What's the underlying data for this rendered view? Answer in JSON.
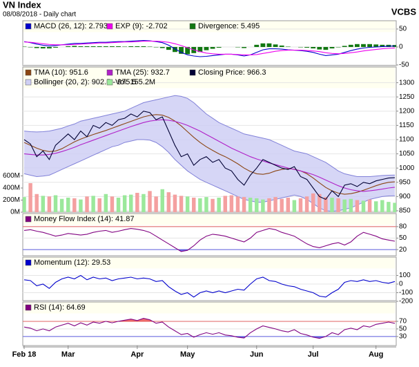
{
  "chart_data": {
    "type": "stock",
    "title": "VN Index",
    "subtitle": "08/08/2018 - Daily chart",
    "source": "VCBS",
    "categories": [
      "Feb 18",
      null,
      null,
      null,
      null,
      null,
      null,
      "Mar",
      null,
      null,
      null,
      null,
      null,
      null,
      null,
      null,
      null,
      null,
      "Apr",
      null,
      null,
      null,
      null,
      null,
      null,
      null,
      "May",
      null,
      null,
      null,
      null,
      null,
      null,
      null,
      null,
      null,
      null,
      "Jun",
      null,
      null,
      null,
      null,
      null,
      null,
      null,
      null,
      "Jul",
      null,
      null,
      null,
      null,
      null,
      null,
      null,
      null,
      null,
      "Aug",
      null,
      null,
      null
    ],
    "panels": [
      {
        "ylim": [
          -52,
          73
        ],
        "yticks": [
          -50,
          0,
          50
        ],
        "grid": true,
        "series": [
          {
            "name": "MACD (26, 12): 2.793",
            "type": "line",
            "color": "#0000cc",
            "values": [
              15,
              12,
              8,
              5,
              3,
              4,
              6,
              8,
              10,
              10,
              11,
              12,
              13,
              13,
              14,
              15,
              15,
              16,
              17,
              18,
              17,
              15,
              12,
              5,
              -5,
              -15,
              -22,
              -25,
              -27,
              -26,
              -24,
              -22,
              -20,
              -20,
              -22,
              -25,
              -22,
              -15,
              -8,
              -5,
              -5,
              -6,
              -8,
              -9,
              -10,
              -12,
              -15,
              -20,
              -24,
              -22,
              -20,
              -15,
              -10,
              -6,
              -3,
              -1,
              0,
              1,
              2,
              2.793
            ]
          },
          {
            "name": "EXP (9): -2.702",
            "type": "line",
            "color": "#ee00ee",
            "values": [
              14,
              13,
              11,
              9,
              7,
              6,
              6,
              6,
              7,
              8,
              9,
              10,
              11,
              11,
              12,
              13,
              14,
              14,
              15,
              16,
              16,
              16,
              15,
              13,
              9,
              4,
              -2,
              -8,
              -13,
              -17,
              -19,
              -20,
              -20,
              -20,
              -21,
              -22,
              -22,
              -21,
              -18,
              -15,
              -12,
              -10,
              -9,
              -9,
              -9,
              -10,
              -11,
              -13,
              -16,
              -18,
              -19,
              -18,
              -16,
              -14,
              -11,
              -9,
              -7,
              -5,
              -4,
              -2.702
            ]
          },
          {
            "name": "Divergence: 5.495",
            "type": "bar",
            "color": "#117711",
            "values": [
              1,
              -1,
              -3,
              -4,
              -4,
              -2,
              0,
              2,
              3,
              2,
              2,
              2,
              2,
              2,
              2,
              2,
              1,
              2,
              2,
              2,
              1,
              -1,
              -3,
              -8,
              -14,
              -19,
              -20,
              -17,
              -14,
              -9,
              -5,
              -2,
              0,
              0,
              -1,
              -3,
              0,
              6,
              10,
              10,
              7,
              4,
              1,
              0,
              -1,
              -2,
              -4,
              -7,
              -8,
              -4,
              -1,
              3,
              6,
              8,
              8,
              8,
              7,
              6,
              6,
              5.495
            ]
          }
        ]
      },
      {
        "ylim": [
          845,
          1355
        ],
        "yticks": [
          850,
          900,
          950,
          1000,
          1050,
          1100,
          1150,
          1200,
          1250,
          1300
        ],
        "grid": true,
        "y2lim": [
          0,
          2400
        ],
        "y2ticks": [
          {
            "value": 0,
            "label": "0M"
          },
          {
            "value": 200,
            "label": "200M"
          },
          {
            "value": 400,
            "label": "400M"
          },
          {
            "value": 600,
            "label": "600M"
          }
        ],
        "series": [
          {
            "name": "TMA (10): 951.6",
            "type": "line",
            "color": "#8b4513",
            "values": [
              1090,
              1080,
              1070,
              1062,
              1058,
              1060,
              1068,
              1080,
              1092,
              1102,
              1110,
              1118,
              1125,
              1132,
              1140,
              1148,
              1156,
              1164,
              1172,
              1180,
              1185,
              1188,
              1186,
              1178,
              1165,
              1148,
              1128,
              1108,
              1090,
              1075,
              1062,
              1050,
              1040,
              1028,
              1015,
              1000,
              988,
              980,
              978,
              982,
              990,
              995,
              998,
              996,
              990,
              980,
              965,
              948,
              932,
              920,
              912,
              908,
              910,
              915,
              922,
              930,
              938,
              945,
              950,
              951.6
            ]
          },
          {
            "name": "TMA (25): 932.7",
            "type": "line",
            "color": "#b020c8",
            "values": [
              1050,
              1048,
              1046,
              1046,
              1048,
              1052,
              1058,
              1065,
              1073,
              1082,
              1090,
              1098,
              1106,
              1114,
              1122,
              1130,
              1138,
              1146,
              1153,
              1160,
              1165,
              1168,
              1170,
              1168,
              1164,
              1158,
              1150,
              1140,
              1130,
              1118,
              1106,
              1094,
              1082,
              1070,
              1060,
              1050,
              1040,
              1032,
              1025,
              1018,
              1012,
              1006,
              1000,
              995,
              990,
              984,
              977,
              968,
              958,
              948,
              938,
              930,
              924,
              920,
              918,
              920,
              923,
              926,
              930,
              932.7
            ]
          },
          {
            "name": "Closing Price: 966.3",
            "type": "line",
            "color": "#000033",
            "values": [
              1100,
              1085,
              1040,
              1060,
              1030,
              1080,
              1100,
              1120,
              1100,
              1130,
              1110,
              1150,
              1140,
              1160,
              1150,
              1170,
              1175,
              1190,
              1180,
              1200,
              1195,
              1170,
              1180,
              1130,
              1080,
              1040,
              1050,
              1010,
              1030,
              1040,
              1020,
              1030,
              1000,
              990,
              960,
              940,
              975,
              1000,
              1030,
              1020,
              1010,
              1000,
              995,
              1005,
              970,
              960,
              930,
              900,
              890,
              920,
              900,
              940,
              945,
              935,
              950,
              945,
              955,
              960,
              965,
              966.3
            ]
          },
          {
            "name": "Bollinger (20, 2): 902.5 - 975.5",
            "type": "band",
            "color": "#8080d8",
            "fill": "#cfcff4",
            "upper": [
              1130,
              1128,
              1127,
              1128,
              1130,
              1135,
              1140,
              1148,
              1155,
              1165,
              1170,
              1175,
              1180,
              1185,
              1190,
              1195,
              1200,
              1210,
              1220,
              1230,
              1235,
              1240,
              1245,
              1250,
              1255,
              1252,
              1245,
              1230,
              1210,
              1190,
              1175,
              1160,
              1150,
              1140,
              1130,
              1120,
              1115,
              1110,
              1105,
              1100,
              1090,
              1080,
              1070,
              1060,
              1055,
              1050,
              1040,
              1030,
              1020,
              1005,
              990,
              980,
              975,
              970,
              970,
              970,
              972,
              974,
              975,
              975.5
            ],
            "lower": [
              980,
              975,
              970,
              972,
              975,
              985,
              995,
              1005,
              1015,
              1025,
              1035,
              1045,
              1055,
              1065,
              1075,
              1080,
              1090,
              1095,
              1100,
              1100,
              1098,
              1090,
              1075,
              1055,
              1030,
              1010,
              990,
              975,
              960,
              950,
              940,
              930,
              920,
              910,
              900,
              890,
              885,
              880,
              880,
              885,
              890,
              895,
              900,
              905,
              900,
              890,
              875,
              860,
              850,
              848,
              850,
              855,
              860,
              870,
              880,
              890,
              895,
              900,
              902,
              902.5
            ]
          },
          {
            "name": "Vol: 155.2M",
            "type": "bar",
            "axis": "y2",
            "color": "#9be89b",
            "down_color": "#f4a0a0",
            "values": [
              250,
              480,
              300,
              270,
              260,
              280,
              220,
              240,
              230,
              210,
              260,
              270,
              230,
              300,
              260,
              240,
              280,
              290,
              320,
              300,
              350,
              260,
              380,
              330,
              290,
              270,
              260,
              240,
              230,
              250,
              220,
              240,
              270,
              280,
              260,
              250,
              240,
              230,
              210,
              230,
              250,
              220,
              240,
              200,
              230,
              260,
              310,
              300,
              250,
              240,
              230,
              210,
              220,
              200,
              190,
              210,
              180,
              200,
              170,
              155.2
            ]
          }
        ]
      },
      {
        "ylim": [
          4,
          114
        ],
        "yticks": [
          20,
          50,
          80
        ],
        "grid": true,
        "bands": true,
        "series": [
          {
            "name": "Money Flow Index (14): 41.87",
            "type": "line",
            "color": "#800080",
            "values": [
              70,
              72,
              68,
              65,
              60,
              55,
              58,
              62,
              60,
              58,
              60,
              65,
              68,
              70,
              65,
              68,
              72,
              75,
              73,
              70,
              65,
              55,
              45,
              35,
              25,
              15,
              18,
              30,
              45,
              55,
              60,
              58,
              55,
              50,
              45,
              40,
              50,
              65,
              70,
              75,
              72,
              65,
              60,
              55,
              45,
              35,
              28,
              25,
              30,
              35,
              38,
              32,
              40,
              55,
              65,
              60,
              55,
              48,
              45,
              41.87
            ]
          }
        ]
      },
      {
        "ylim": [
          -192,
          312
        ],
        "yticks": [
          100,
          0,
          -100,
          -200
        ],
        "grid": true,
        "series": [
          {
            "name": "Momentum (12): 29.53",
            "type": "line",
            "color": "#0000cc",
            "values": [
              50,
              40,
              -20,
              0,
              -50,
              20,
              60,
              80,
              60,
              100,
              50,
              80,
              60,
              70,
              40,
              60,
              70,
              80,
              60,
              70,
              60,
              30,
              40,
              -30,
              -80,
              -120,
              -100,
              -150,
              -100,
              -80,
              -100,
              -80,
              -100,
              -80,
              -60,
              -70,
              0,
              60,
              80,
              40,
              30,
              0,
              -20,
              -30,
              -60,
              -80,
              -100,
              -140,
              -150,
              -100,
              -60,
              20,
              40,
              30,
              50,
              30,
              40,
              20,
              10,
              29.53
            ]
          }
        ]
      },
      {
        "ylim": [
          6,
          121
        ],
        "yticks": [
          30,
          50,
          70
        ],
        "grid": true,
        "bands": true,
        "series": [
          {
            "name": "RSI (14): 64.69",
            "type": "line",
            "color": "#800080",
            "values": [
              55,
              52,
              45,
              50,
              45,
              55,
              60,
              65,
              58,
              66,
              60,
              68,
              65,
              70,
              66,
              70,
              73,
              76,
              72,
              78,
              74,
              65,
              68,
              55,
              45,
              35,
              38,
              28,
              35,
              40,
              36,
              40,
              34,
              32,
              28,
              26,
              40,
              50,
              58,
              54,
              50,
              45,
              42,
              48,
              38,
              34,
              28,
              25,
              30,
              40,
              35,
              48,
              52,
              48,
              58,
              55,
              62,
              65,
              68,
              64.69
            ]
          }
        ]
      }
    ]
  }
}
